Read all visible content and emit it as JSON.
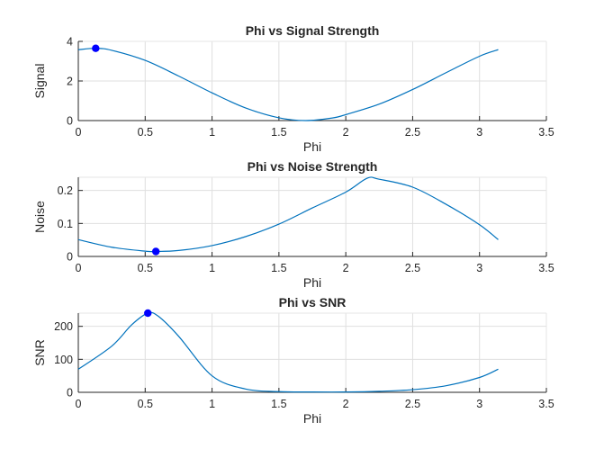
{
  "figure": {
    "background": "#ffffff",
    "axes_text_color": "#262626",
    "grid_color": "#dfdfdf"
  },
  "chart_data": [
    {
      "type": "line",
      "title": "Phi vs Signal Strength",
      "xlabel": "Phi",
      "ylabel": "Signal",
      "xlim": [
        0,
        3.5
      ],
      "ylim": [
        0,
        4
      ],
      "xticks": [
        0,
        0.5,
        1,
        1.5,
        2,
        2.5,
        3,
        3.5
      ],
      "xtick_labels": [
        "0",
        "0.5",
        "1",
        "1.5",
        "2",
        "2.5",
        "3",
        "3.5"
      ],
      "yticks": [
        0,
        2,
        4
      ],
      "ytick_labels": [
        "0",
        "2",
        "4"
      ],
      "grid": true,
      "series": [
        {
          "line_color": "#0072bd",
          "x": [
            0,
            0.13,
            0.25,
            0.5,
            0.75,
            1.0,
            1.25,
            1.5,
            1.7,
            1.9,
            2.0,
            2.25,
            2.5,
            2.75,
            3.0,
            3.14
          ],
          "y": [
            3.58,
            3.65,
            3.55,
            3.04,
            2.25,
            1.4,
            0.64,
            0.14,
            0.0,
            0.13,
            0.3,
            0.83,
            1.57,
            2.42,
            3.25,
            3.58
          ]
        }
      ],
      "marker": {
        "x": 0.13,
        "y": 3.65,
        "color": "#0000ff"
      }
    },
    {
      "type": "line",
      "title": "Phi vs Noise Strength",
      "xlabel": "Phi",
      "ylabel": "Noise",
      "xlim": [
        0,
        3.5
      ],
      "ylim": [
        0,
        0.24
      ],
      "xticks": [
        0,
        0.5,
        1,
        1.5,
        2,
        2.5,
        3,
        3.5
      ],
      "xtick_labels": [
        "0",
        "0.5",
        "1",
        "1.5",
        "2",
        "2.5",
        "3",
        "3.5"
      ],
      "yticks": [
        0,
        0.1,
        0.2
      ],
      "ytick_labels": [
        "0",
        "0.1",
        "0.2"
      ],
      "grid": true,
      "series": [
        {
          "line_color": "#0072bd",
          "x": [
            0,
            0.25,
            0.5,
            0.58,
            0.75,
            1.0,
            1.25,
            1.5,
            1.75,
            2.0,
            2.16,
            2.25,
            2.5,
            2.75,
            3.0,
            3.14
          ],
          "y": [
            0.051,
            0.028,
            0.016,
            0.015,
            0.018,
            0.033,
            0.06,
            0.098,
            0.147,
            0.195,
            0.237,
            0.234,
            0.21,
            0.158,
            0.096,
            0.051
          ]
        }
      ],
      "marker": {
        "x": 0.58,
        "y": 0.015,
        "color": "#0000ff"
      }
    },
    {
      "type": "line",
      "title": "Phi vs SNR",
      "xlabel": "Phi",
      "ylabel": "SNR",
      "xlim": [
        0,
        3.5
      ],
      "ylim": [
        0,
        240
      ],
      "xticks": [
        0,
        0.5,
        1,
        1.5,
        2,
        2.5,
        3,
        3.5
      ],
      "xtick_labels": [
        "0",
        "0.5",
        "1",
        "1.5",
        "2",
        "2.5",
        "3",
        "3.5"
      ],
      "yticks": [
        0,
        100,
        200
      ],
      "ytick_labels": [
        "0",
        "100",
        "200"
      ],
      "grid": true,
      "series": [
        {
          "line_color": "#0072bd",
          "x": [
            0,
            0.25,
            0.4,
            0.52,
            0.6,
            0.75,
            1.0,
            1.25,
            1.5,
            1.75,
            2.0,
            2.25,
            2.5,
            2.75,
            3.0,
            3.14
          ],
          "y": [
            70,
            140,
            205,
            240,
            230,
            170,
            50,
            10,
            2,
            1,
            1,
            3,
            8,
            20,
            45,
            70
          ]
        }
      ],
      "marker": {
        "x": 0.52,
        "y": 240,
        "color": "#0000ff"
      }
    }
  ]
}
